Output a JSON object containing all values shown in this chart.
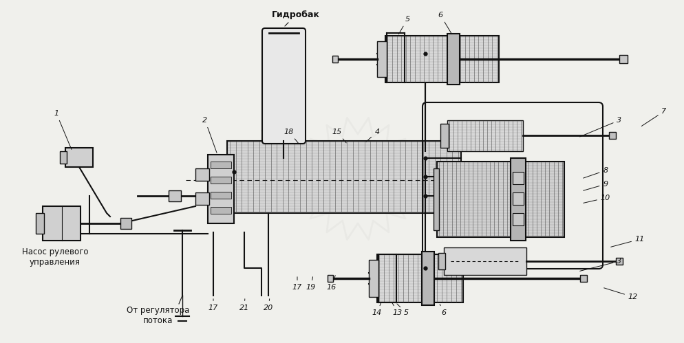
{
  "bg_color": "#f0f0ec",
  "line_color": "#111111",
  "label_gidrobak": "Гидробак",
  "label_nasos": "Насос рулевого\nуправления",
  "label_ot_reg": "От регулятора\nпотока",
  "watermark_alpha": 0.06,
  "fig_w": 9.95,
  "fig_h": 4.99,
  "dpi": 100
}
